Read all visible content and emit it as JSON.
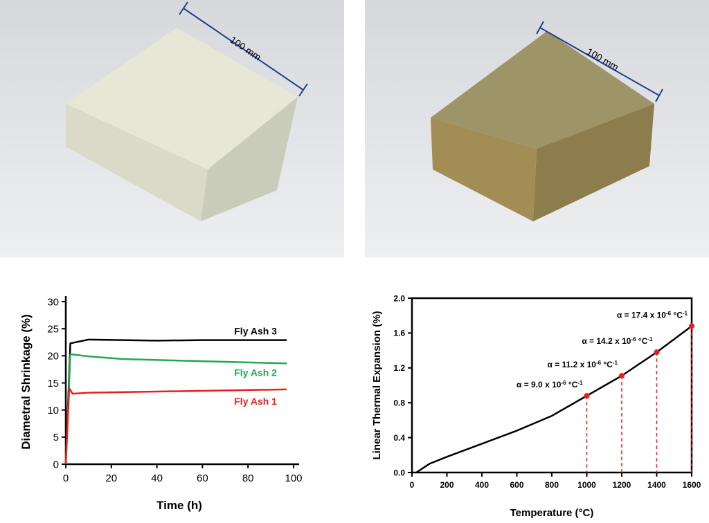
{
  "photos": [
    {
      "dimension_label": "100 mm"
    },
    {
      "dimension_label": "100 mm"
    }
  ],
  "chart_data": [
    {
      "type": "line",
      "x_label": "Time (h)",
      "y_label": "Diametral Shrinkage (%)",
      "xlim": [
        0,
        100
      ],
      "xticks": [
        0,
        20,
        40,
        60,
        80,
        100
      ],
      "ylim": [
        0,
        30
      ],
      "yticks": [
        0,
        5,
        10,
        15,
        20,
        25,
        30
      ],
      "series": [
        {
          "name": "Fly Ash 3",
          "color": "#000000",
          "x": [
            0,
            2,
            10,
            25,
            40,
            60,
            97
          ],
          "values": [
            0,
            22.3,
            23,
            22.9,
            22.8,
            22.9,
            22.9
          ]
        },
        {
          "name": "Fly Ash 2",
          "color": "#1faa4f",
          "x": [
            0,
            2,
            10,
            25,
            60,
            97
          ],
          "values": [
            0,
            20.3,
            19.9,
            19.4,
            19,
            18.6
          ]
        },
        {
          "name": "Fly Ash 1",
          "color": "#ee1c1c",
          "x": [
            0,
            1.5,
            3,
            10,
            40,
            97
          ],
          "values": [
            0,
            14,
            13,
            13.2,
            13.4,
            13.8
          ]
        }
      ]
    },
    {
      "type": "line",
      "x_label": "Temperature (°C)",
      "y_label": "Linear Thermal Expansion (%)",
      "xlim": [
        0,
        1600
      ],
      "xticks": [
        0,
        200,
        400,
        600,
        800,
        1000,
        1200,
        1400,
        1600
      ],
      "ylim": [
        0,
        2.0
      ],
      "yticks": [
        {
          "value": 0,
          "label": "0.0"
        },
        0.4,
        0.8,
        1.2,
        1.6,
        {
          "value": 2.0,
          "label": "2.0"
        }
      ],
      "series": [
        {
          "color": "#000000",
          "x": [
            25,
            100,
            200,
            400,
            600,
            800,
            1000,
            1200,
            1400,
            1600
          ],
          "values": [
            0,
            0.1,
            0.18,
            0.33,
            0.48,
            0.65,
            0.88,
            1.11,
            1.38,
            1.68
          ]
        }
      ],
      "points": {
        "color": "#ee1c1c",
        "x": [
          1000,
          1200,
          1400,
          1600
        ],
        "values": [
          0.88,
          1.11,
          1.38,
          1.68
        ]
      },
      "annotations": [
        {
          "prefix": "α = 9.0 x 10",
          "exp": "-6",
          "unit": " °C",
          "unit_exp": "-1"
        },
        {
          "prefix": "α = 11.2 x 10",
          "exp": "-6",
          "unit": " °C",
          "unit_exp": "-1"
        },
        {
          "prefix": "α = 14.2 x 10",
          "exp": "-6",
          "unit": " °C",
          "unit_exp": "-1"
        },
        {
          "prefix": "α = 17.4 x 10",
          "exp": "-6",
          "unit": " °C",
          "unit_exp": "-1"
        }
      ]
    }
  ]
}
